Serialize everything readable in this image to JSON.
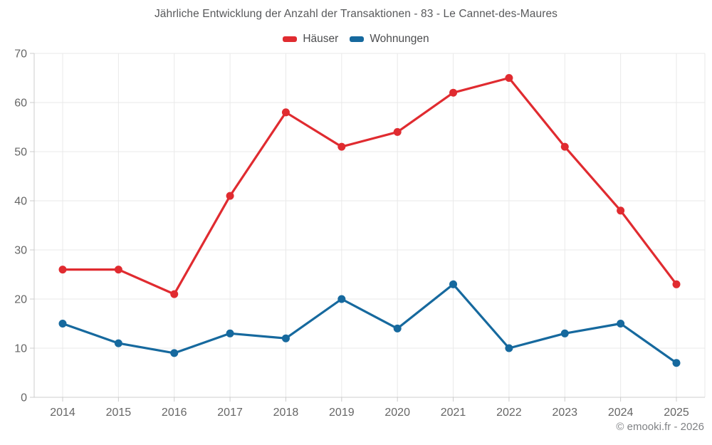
{
  "page": {
    "footer": "© emooki.fr - 2026"
  },
  "chart_data": {
    "type": "line",
    "title": "Jährliche Entwicklung der Anzahl der Transaktionen - 83 - Le Cannet-des-Maures",
    "categories": [
      "2014",
      "2015",
      "2016",
      "2017",
      "2018",
      "2019",
      "2020",
      "2021",
      "2022",
      "2023",
      "2024",
      "2025"
    ],
    "series": [
      {
        "name": "Häuser",
        "color": "#e02b30",
        "values": [
          26,
          26,
          21,
          41,
          58,
          51,
          54,
          62,
          65,
          51,
          38,
          23
        ]
      },
      {
        "name": "Wohnungen",
        "color": "#16699e",
        "values": [
          15,
          11,
          9,
          13,
          12,
          20,
          14,
          23,
          10,
          13,
          15,
          7
        ]
      }
    ],
    "xlabel": "",
    "ylabel": "",
    "ylim": [
      0,
      70
    ],
    "yticks": [
      0,
      10,
      20,
      30,
      40,
      50,
      60,
      70
    ],
    "grid": true,
    "legend_position": "top",
    "marker": "circle"
  },
  "style": {
    "grid_color": "#e9e9e9",
    "axis_color": "#cccccc",
    "tick_label_color": "#666666",
    "title_color": "#58595b",
    "footer_color": "#808285"
  }
}
